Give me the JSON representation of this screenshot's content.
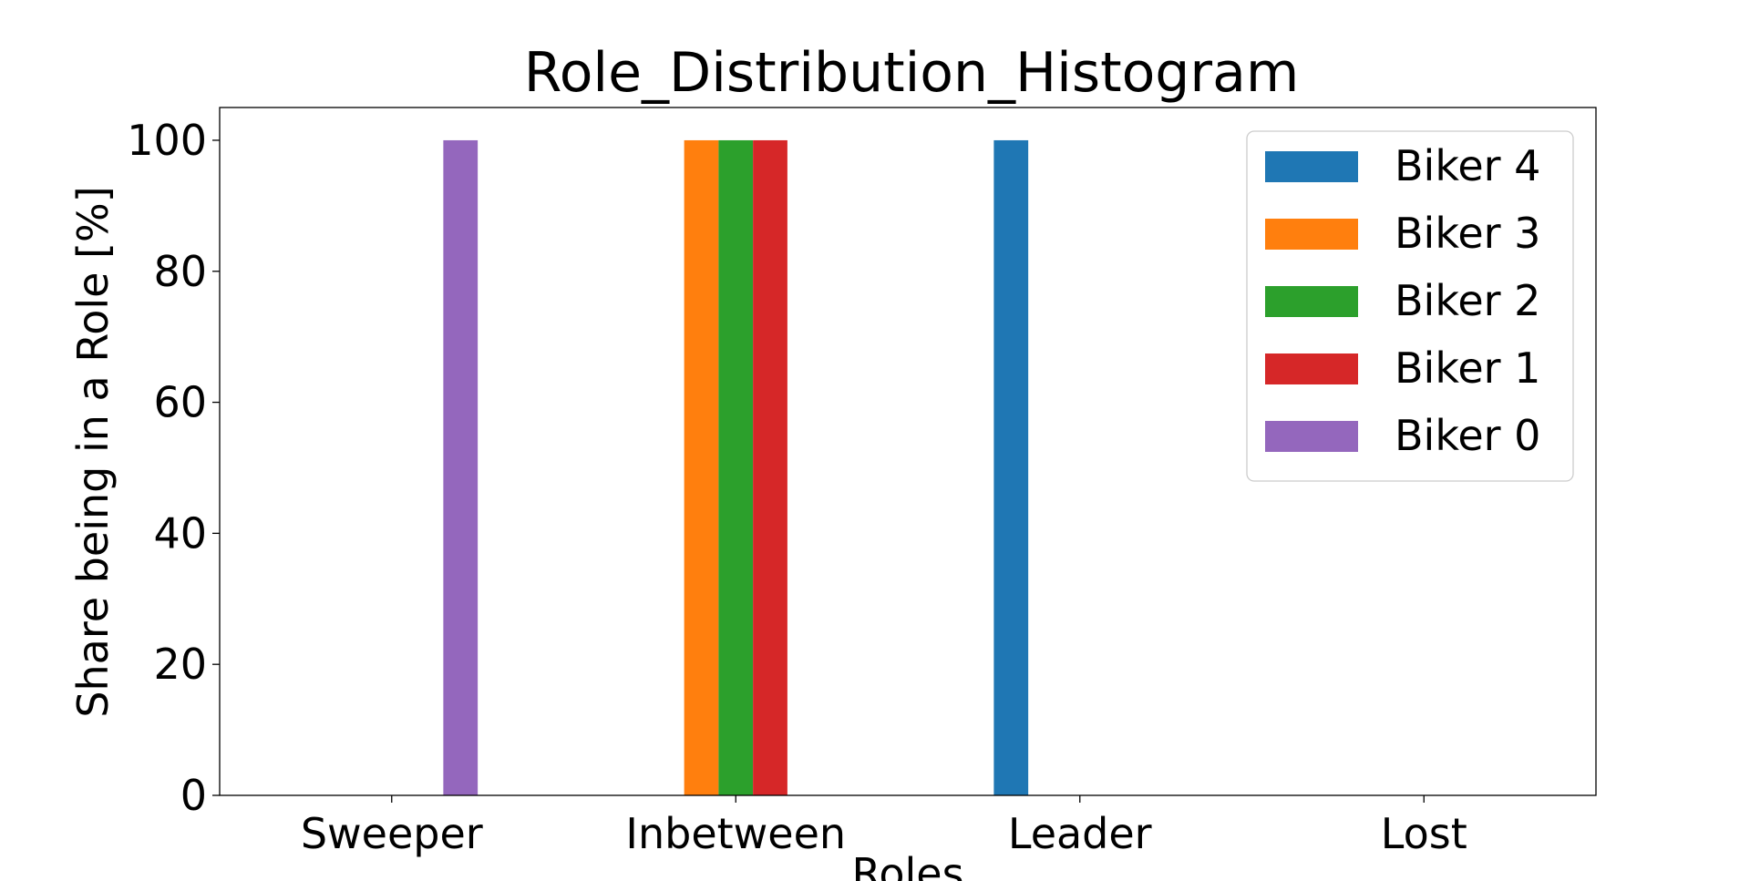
{
  "chart_data": {
    "type": "bar",
    "title": "Role_Distribution_Histogram",
    "xlabel": "Roles",
    "ylabel": "Share being in a Role [%]",
    "categories": [
      "Sweeper",
      "Inbetween",
      "Leader",
      "Lost"
    ],
    "ylim": [
      0,
      105
    ],
    "yticks": [
      0,
      20,
      40,
      60,
      80,
      100
    ],
    "grid": false,
    "legend_position": "top-right",
    "series": [
      {
        "name": "Biker 4",
        "color": "#1f77b4",
        "values": [
          0,
          0,
          100,
          0
        ]
      },
      {
        "name": "Biker 3",
        "color": "#ff7f0e",
        "values": [
          0,
          100,
          0,
          0
        ]
      },
      {
        "name": "Biker 2",
        "color": "#2ca02c",
        "values": [
          0,
          100,
          0,
          0
        ]
      },
      {
        "name": "Biker 1",
        "color": "#d62728",
        "values": [
          0,
          100,
          0,
          0
        ]
      },
      {
        "name": "Biker 0",
        "color": "#9467bd",
        "values": [
          100,
          0,
          0,
          0
        ]
      }
    ]
  }
}
